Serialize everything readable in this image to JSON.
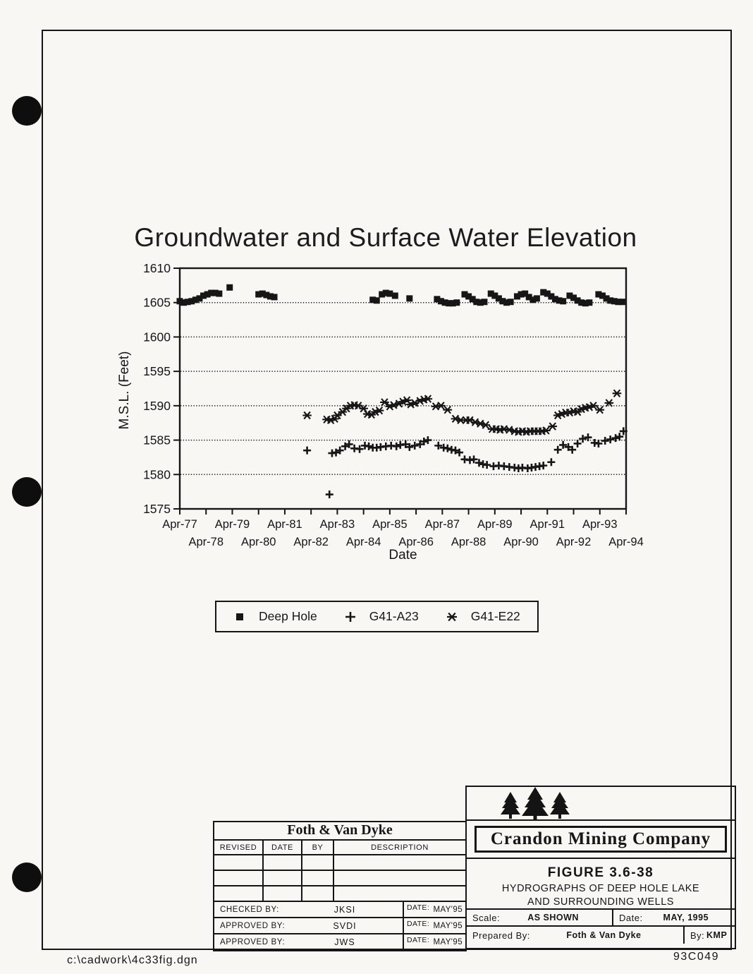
{
  "page": {
    "file_path": "c:\\cadwork\\4c33fig.dgn",
    "doc_number": "93C049"
  },
  "chart_data": {
    "type": "scatter",
    "title": "Groundwater and Surface Water Elevation",
    "xlabel": "Date",
    "ylabel": "M.S.L. (Feet)",
    "ylim": [
      1575,
      1610
    ],
    "xlim_years": [
      1977.25,
      1994.25
    ],
    "grid": "horizontal-dotted",
    "gridline_values": [
      1580,
      1585,
      1590,
      1595,
      1600,
      1605
    ],
    "y_ticks": [
      1575,
      1580,
      1585,
      1590,
      1595,
      1600,
      1605,
      1610
    ],
    "x_ticks_row1": [
      "Apr-77",
      "Apr-79",
      "Apr-81",
      "Apr-83",
      "Apr-85",
      "Apr-87",
      "Apr-89",
      "Apr-91",
      "Apr-93"
    ],
    "x_ticks_row2": [
      "Apr-78",
      "Apr-80",
      "Apr-82",
      "Apr-84",
      "Apr-86",
      "Apr-88",
      "Apr-90",
      "Apr-92",
      "Apr-94"
    ],
    "legend_position": "below",
    "series": [
      {
        "name": "Deep Hole",
        "marker": "square",
        "points": [
          [
            1977.25,
            1605.2
          ],
          [
            1977.4,
            1605.0
          ],
          [
            1977.55,
            1605.1
          ],
          [
            1977.7,
            1605.2
          ],
          [
            1977.85,
            1605.4
          ],
          [
            1978.0,
            1605.6
          ],
          [
            1978.15,
            1606.0
          ],
          [
            1978.3,
            1606.2
          ],
          [
            1978.45,
            1606.4
          ],
          [
            1978.6,
            1606.4
          ],
          [
            1978.75,
            1606.3
          ],
          [
            1979.15,
            1607.2
          ],
          [
            1980.25,
            1606.2
          ],
          [
            1980.4,
            1606.3
          ],
          [
            1980.55,
            1606.1
          ],
          [
            1980.7,
            1605.9
          ],
          [
            1980.85,
            1605.8
          ],
          [
            1984.6,
            1605.4
          ],
          [
            1984.75,
            1605.3
          ],
          [
            1984.95,
            1606.2
          ],
          [
            1985.1,
            1606.4
          ],
          [
            1985.25,
            1606.3
          ],
          [
            1985.45,
            1606.0
          ],
          [
            1986.0,
            1605.6
          ],
          [
            1987.05,
            1605.5
          ],
          [
            1987.2,
            1605.2
          ],
          [
            1987.35,
            1605.0
          ],
          [
            1987.5,
            1604.9
          ],
          [
            1987.65,
            1604.9
          ],
          [
            1987.8,
            1605.0
          ],
          [
            1988.1,
            1606.2
          ],
          [
            1988.25,
            1605.9
          ],
          [
            1988.4,
            1605.5
          ],
          [
            1988.55,
            1605.1
          ],
          [
            1988.7,
            1605.0
          ],
          [
            1988.85,
            1605.1
          ],
          [
            1989.1,
            1606.3
          ],
          [
            1989.25,
            1606.0
          ],
          [
            1989.4,
            1605.6
          ],
          [
            1989.55,
            1605.2
          ],
          [
            1989.7,
            1605.0
          ],
          [
            1989.85,
            1605.1
          ],
          [
            1990.1,
            1605.9
          ],
          [
            1990.25,
            1606.2
          ],
          [
            1990.4,
            1606.3
          ],
          [
            1990.55,
            1605.8
          ],
          [
            1990.7,
            1605.4
          ],
          [
            1990.85,
            1605.6
          ],
          [
            1991.1,
            1606.5
          ],
          [
            1991.25,
            1606.3
          ],
          [
            1991.4,
            1605.9
          ],
          [
            1991.55,
            1605.5
          ],
          [
            1991.7,
            1605.3
          ],
          [
            1991.85,
            1605.2
          ],
          [
            1992.1,
            1606.0
          ],
          [
            1992.25,
            1605.7
          ],
          [
            1992.4,
            1605.3
          ],
          [
            1992.55,
            1605.0
          ],
          [
            1992.7,
            1604.9
          ],
          [
            1992.85,
            1605.0
          ],
          [
            1993.2,
            1606.2
          ],
          [
            1993.35,
            1606.0
          ],
          [
            1993.5,
            1605.6
          ],
          [
            1993.65,
            1605.3
          ],
          [
            1993.8,
            1605.2
          ],
          [
            1993.95,
            1605.1
          ],
          [
            1994.1,
            1605.1
          ]
        ]
      },
      {
        "name": "G41-A23",
        "marker": "plus",
        "points": [
          [
            1982.1,
            1583.5
          ],
          [
            1982.95,
            1577.1
          ],
          [
            1983.05,
            1583.1
          ],
          [
            1983.2,
            1583.2
          ],
          [
            1983.35,
            1583.5
          ],
          [
            1983.55,
            1584.1
          ],
          [
            1983.7,
            1584.4
          ],
          [
            1983.9,
            1583.8
          ],
          [
            1984.1,
            1583.7
          ],
          [
            1984.3,
            1584.2
          ],
          [
            1984.45,
            1584.1
          ],
          [
            1984.6,
            1583.9
          ],
          [
            1984.75,
            1583.9
          ],
          [
            1984.9,
            1584.0
          ],
          [
            1985.1,
            1584.1
          ],
          [
            1985.3,
            1584.2
          ],
          [
            1985.5,
            1584.1
          ],
          [
            1985.65,
            1584.3
          ],
          [
            1985.85,
            1584.4
          ],
          [
            1986.0,
            1584.0
          ],
          [
            1986.2,
            1584.2
          ],
          [
            1986.4,
            1584.4
          ],
          [
            1986.55,
            1584.8
          ],
          [
            1986.7,
            1585.0
          ],
          [
            1987.1,
            1584.2
          ],
          [
            1987.3,
            1583.9
          ],
          [
            1987.45,
            1583.8
          ],
          [
            1987.6,
            1583.6
          ],
          [
            1987.75,
            1583.5
          ],
          [
            1987.9,
            1583.2
          ],
          [
            1988.1,
            1582.2
          ],
          [
            1988.3,
            1582.1
          ],
          [
            1988.45,
            1582.2
          ],
          [
            1988.65,
            1581.7
          ],
          [
            1988.8,
            1581.5
          ],
          [
            1988.95,
            1581.4
          ],
          [
            1989.2,
            1581.2
          ],
          [
            1989.4,
            1581.3
          ],
          [
            1989.6,
            1581.2
          ],
          [
            1989.8,
            1581.1
          ],
          [
            1990.0,
            1581.0
          ],
          [
            1990.15,
            1580.9
          ],
          [
            1990.3,
            1581.0
          ],
          [
            1990.5,
            1580.9
          ],
          [
            1990.65,
            1581.0
          ],
          [
            1990.8,
            1581.1
          ],
          [
            1990.95,
            1581.2
          ],
          [
            1991.1,
            1581.3
          ],
          [
            1991.4,
            1581.8
          ],
          [
            1991.65,
            1583.6
          ],
          [
            1991.85,
            1584.3
          ],
          [
            1992.05,
            1584.0
          ],
          [
            1992.2,
            1583.6
          ],
          [
            1992.4,
            1584.5
          ],
          [
            1992.6,
            1585.2
          ],
          [
            1992.8,
            1585.4
          ],
          [
            1993.05,
            1584.6
          ],
          [
            1993.2,
            1584.5
          ],
          [
            1993.45,
            1584.9
          ],
          [
            1993.65,
            1585.1
          ],
          [
            1993.85,
            1585.3
          ],
          [
            1994.0,
            1585.5
          ],
          [
            1994.15,
            1586.3
          ]
        ]
      },
      {
        "name": "G41-E22",
        "marker": "asterisk",
        "points": [
          [
            1982.1,
            1588.6
          ],
          [
            1982.85,
            1588.0
          ],
          [
            1983.0,
            1587.9
          ],
          [
            1983.15,
            1588.1
          ],
          [
            1983.25,
            1588.6
          ],
          [
            1983.45,
            1589.1
          ],
          [
            1983.6,
            1589.6
          ],
          [
            1983.75,
            1590.0
          ],
          [
            1983.9,
            1590.1
          ],
          [
            1984.05,
            1590.0
          ],
          [
            1984.25,
            1589.6
          ],
          [
            1984.4,
            1588.8
          ],
          [
            1984.55,
            1588.7
          ],
          [
            1984.7,
            1589.1
          ],
          [
            1984.85,
            1589.3
          ],
          [
            1985.05,
            1590.5
          ],
          [
            1985.25,
            1589.9
          ],
          [
            1985.4,
            1590.1
          ],
          [
            1985.6,
            1590.3
          ],
          [
            1985.75,
            1590.6
          ],
          [
            1985.9,
            1590.8
          ],
          [
            1986.05,
            1590.2
          ],
          [
            1986.2,
            1590.4
          ],
          [
            1986.4,
            1590.7
          ],
          [
            1986.55,
            1590.9
          ],
          [
            1986.7,
            1591.0
          ],
          [
            1987.0,
            1589.9
          ],
          [
            1987.2,
            1590.0
          ],
          [
            1987.45,
            1589.4
          ],
          [
            1987.75,
            1588.1
          ],
          [
            1987.95,
            1587.9
          ],
          [
            1988.15,
            1587.9
          ],
          [
            1988.3,
            1587.9
          ],
          [
            1988.5,
            1587.6
          ],
          [
            1988.7,
            1587.4
          ],
          [
            1988.9,
            1587.2
          ],
          [
            1989.15,
            1586.6
          ],
          [
            1989.3,
            1586.6
          ],
          [
            1989.45,
            1586.5
          ],
          [
            1989.6,
            1586.6
          ],
          [
            1989.8,
            1586.5
          ],
          [
            1990.0,
            1586.3
          ],
          [
            1990.15,
            1586.2
          ],
          [
            1990.3,
            1586.3
          ],
          [
            1990.45,
            1586.2
          ],
          [
            1990.6,
            1586.3
          ],
          [
            1990.75,
            1586.3
          ],
          [
            1990.9,
            1586.3
          ],
          [
            1991.05,
            1586.3
          ],
          [
            1991.2,
            1586.4
          ],
          [
            1991.45,
            1587.0
          ],
          [
            1991.65,
            1588.6
          ],
          [
            1991.8,
            1588.8
          ],
          [
            1991.95,
            1589.0
          ],
          [
            1992.1,
            1589.0
          ],
          [
            1992.25,
            1589.2
          ],
          [
            1992.4,
            1589.1
          ],
          [
            1992.55,
            1589.5
          ],
          [
            1992.7,
            1589.7
          ],
          [
            1992.85,
            1589.8
          ],
          [
            1993.0,
            1590.0
          ],
          [
            1993.25,
            1589.4
          ],
          [
            1993.6,
            1590.4
          ],
          [
            1993.9,
            1591.8
          ]
        ]
      }
    ]
  },
  "revision_block": {
    "company": "Foth & Van Dyke",
    "columns": [
      "REVISED",
      "DATE",
      "BY",
      "DESCRIPTION"
    ],
    "signoff_rows": [
      {
        "label": "CHECKED BY:",
        "value": "JKSI",
        "date_label": "DATE:",
        "date": "MAY'95"
      },
      {
        "label": "APPROVED BY:",
        "value": "SVDI",
        "date_label": "DATE:",
        "date": "MAY'95"
      },
      {
        "label": "APPROVED BY:",
        "value": "JWS",
        "date_label": "DATE:",
        "date": "MAY'95"
      }
    ]
  },
  "title_block": {
    "company": "Crandon Mining Company",
    "figure": "FIGURE 3.6-38",
    "title_line1": "HYDROGRAPHS OF DEEP HOLE LAKE",
    "title_line2": "AND SURROUNDING WELLS",
    "scale_label": "Scale:",
    "scale": "AS SHOWN",
    "date_label": "Date:",
    "date": "MAY, 1995",
    "prepared_label": "Prepared By:",
    "prepared": "Foth & Van Dyke",
    "by_label": "By:",
    "by": "KMP"
  }
}
